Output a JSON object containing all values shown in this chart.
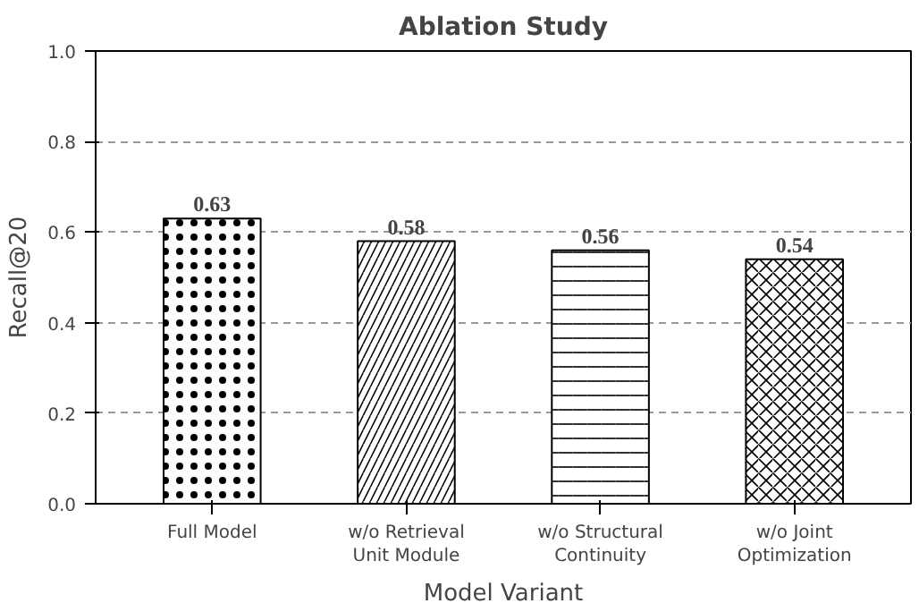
{
  "chart_data": {
    "type": "bar",
    "title": "Ablation Study",
    "xlabel": "Model Variant",
    "ylabel": "Recall@20",
    "categories": [
      "Full Model",
      "w/o Retrieval Unit Module",
      "w/o Structural Continuity",
      "w/o Joint Optimization"
    ],
    "values": [
      0.63,
      0.58,
      0.56,
      0.54
    ],
    "color": "#ffffff",
    "data_labels": true,
    "grid": "y",
    "ylim": [
      0,
      1
    ],
    "yticks": [
      {
        "value": 0,
        "label": "0.0"
      },
      {
        "value": 0.2,
        "label": "0.2"
      },
      {
        "value": 0.4,
        "label": "0.4"
      },
      {
        "value": 0.6,
        "label": "0.6"
      },
      {
        "value": 0.8,
        "label": "0.8"
      },
      {
        "value": 1,
        "label": "1.0"
      }
    ]
  }
}
